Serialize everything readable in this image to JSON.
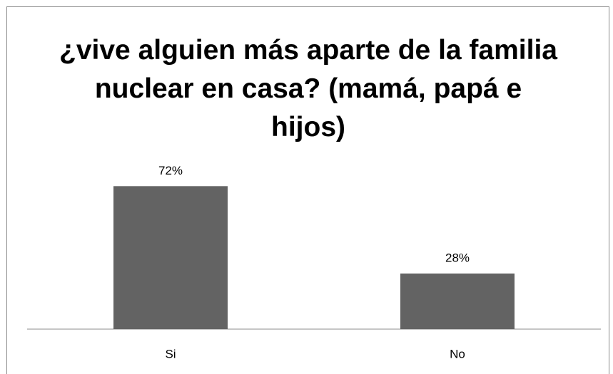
{
  "chart_data": {
    "type": "bar",
    "title": "¿vive alguien más aparte de la familia nuclear en casa? (mamá, papá e hijos)",
    "categories": [
      "Si",
      "No"
    ],
    "values": [
      72,
      28
    ],
    "value_labels": [
      "72%",
      "28%"
    ],
    "color": "#636363",
    "ylim": [
      0,
      80
    ]
  }
}
